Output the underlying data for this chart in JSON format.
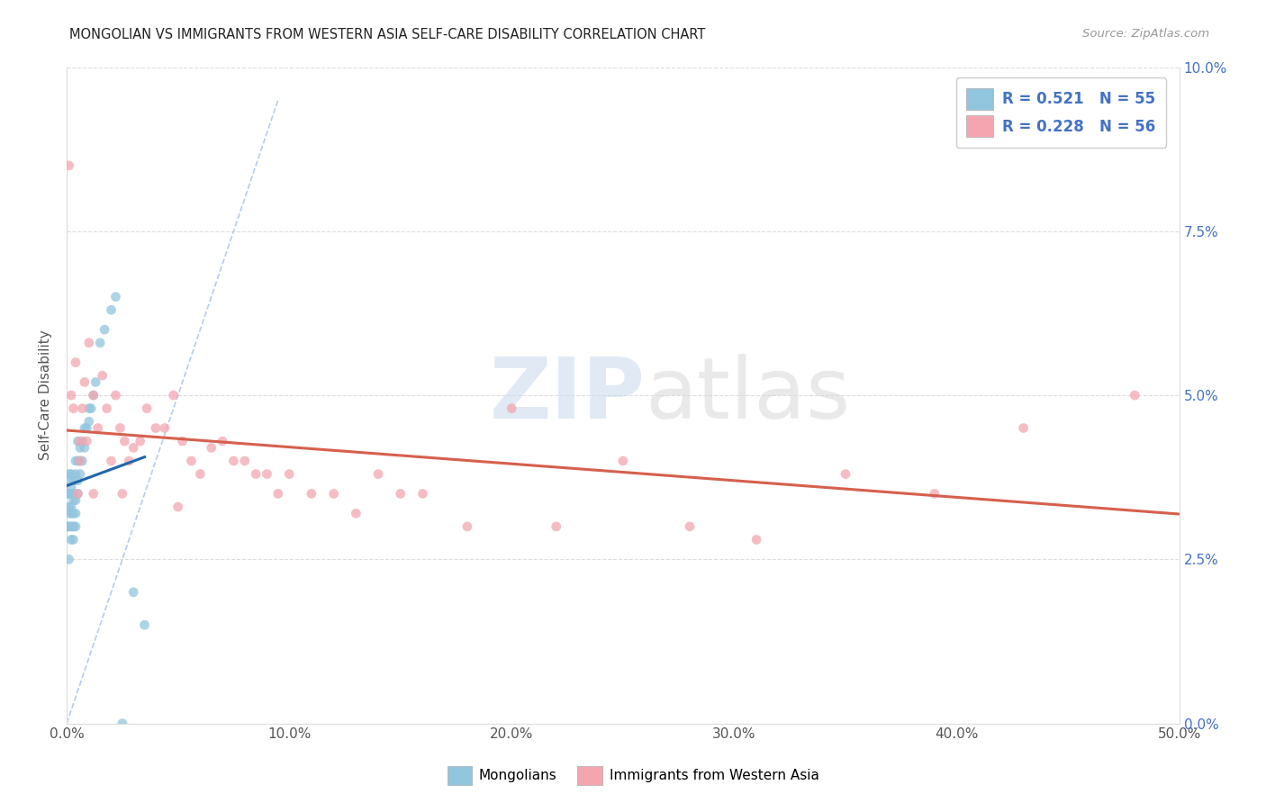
{
  "title": "MONGOLIAN VS IMMIGRANTS FROM WESTERN ASIA SELF-CARE DISABILITY CORRELATION CHART",
  "source": "Source: ZipAtlas.com",
  "ylabel": "Self-Care Disability",
  "xlim": [
    0,
    0.5
  ],
  "ylim": [
    0,
    0.1
  ],
  "legend_label1": "Mongolians",
  "legend_label2": "Immigrants from Western Asia",
  "R1": "0.521",
  "N1": "55",
  "R2": "0.228",
  "N2": "56",
  "color1": "#92c5de",
  "color2": "#f4a6b0",
  "trendline1_color": "#2166ac",
  "trendline2_color": "#d6604d",
  "diagonal_color": "#aec7e8",
  "watermark_zip": "ZIP",
  "watermark_atlas": "atlas",
  "mon_x": [
    0.0,
    0.0,
    0.0,
    0.001,
    0.001,
    0.001,
    0.001,
    0.001,
    0.001,
    0.001,
    0.001,
    0.001,
    0.002,
    0.002,
    0.002,
    0.002,
    0.002,
    0.002,
    0.002,
    0.003,
    0.003,
    0.003,
    0.003,
    0.003,
    0.003,
    0.003,
    0.004,
    0.004,
    0.004,
    0.004,
    0.004,
    0.005,
    0.005,
    0.005,
    0.005,
    0.006,
    0.006,
    0.006,
    0.007,
    0.007,
    0.008,
    0.008,
    0.009,
    0.01,
    0.01,
    0.011,
    0.012,
    0.013,
    0.015,
    0.017,
    0.02,
    0.022,
    0.025,
    0.03,
    0.035
  ],
  "mon_y": [
    0.03,
    0.03,
    0.035,
    0.025,
    0.03,
    0.03,
    0.032,
    0.033,
    0.035,
    0.035,
    0.037,
    0.038,
    0.028,
    0.03,
    0.032,
    0.033,
    0.035,
    0.036,
    0.038,
    0.028,
    0.03,
    0.03,
    0.032,
    0.034,
    0.035,
    0.037,
    0.03,
    0.032,
    0.034,
    0.038,
    0.04,
    0.035,
    0.037,
    0.04,
    0.043,
    0.038,
    0.04,
    0.042,
    0.04,
    0.043,
    0.042,
    0.045,
    0.045,
    0.046,
    0.048,
    0.048,
    0.05,
    0.052,
    0.058,
    0.06,
    0.063,
    0.065,
    0.0,
    0.02,
    0.015
  ],
  "wa_x": [
    0.001,
    0.002,
    0.003,
    0.004,
    0.005,
    0.006,
    0.007,
    0.008,
    0.009,
    0.01,
    0.012,
    0.014,
    0.016,
    0.018,
    0.02,
    0.022,
    0.024,
    0.026,
    0.028,
    0.03,
    0.033,
    0.036,
    0.04,
    0.044,
    0.048,
    0.052,
    0.056,
    0.06,
    0.065,
    0.07,
    0.075,
    0.08,
    0.085,
    0.09,
    0.095,
    0.1,
    0.11,
    0.12,
    0.13,
    0.14,
    0.15,
    0.16,
    0.18,
    0.2,
    0.22,
    0.25,
    0.28,
    0.31,
    0.35,
    0.39,
    0.43,
    0.48,
    0.006,
    0.012,
    0.025,
    0.05
  ],
  "wa_y": [
    0.085,
    0.05,
    0.048,
    0.055,
    0.035,
    0.043,
    0.048,
    0.052,
    0.043,
    0.058,
    0.05,
    0.045,
    0.053,
    0.048,
    0.04,
    0.05,
    0.045,
    0.043,
    0.04,
    0.042,
    0.043,
    0.048,
    0.045,
    0.045,
    0.05,
    0.043,
    0.04,
    0.038,
    0.042,
    0.043,
    0.04,
    0.04,
    0.038,
    0.038,
    0.035,
    0.038,
    0.035,
    0.035,
    0.032,
    0.038,
    0.035,
    0.035,
    0.03,
    0.048,
    0.03,
    0.04,
    0.03,
    0.028,
    0.038,
    0.035,
    0.045,
    0.05,
    0.04,
    0.035,
    0.035,
    0.033
  ]
}
